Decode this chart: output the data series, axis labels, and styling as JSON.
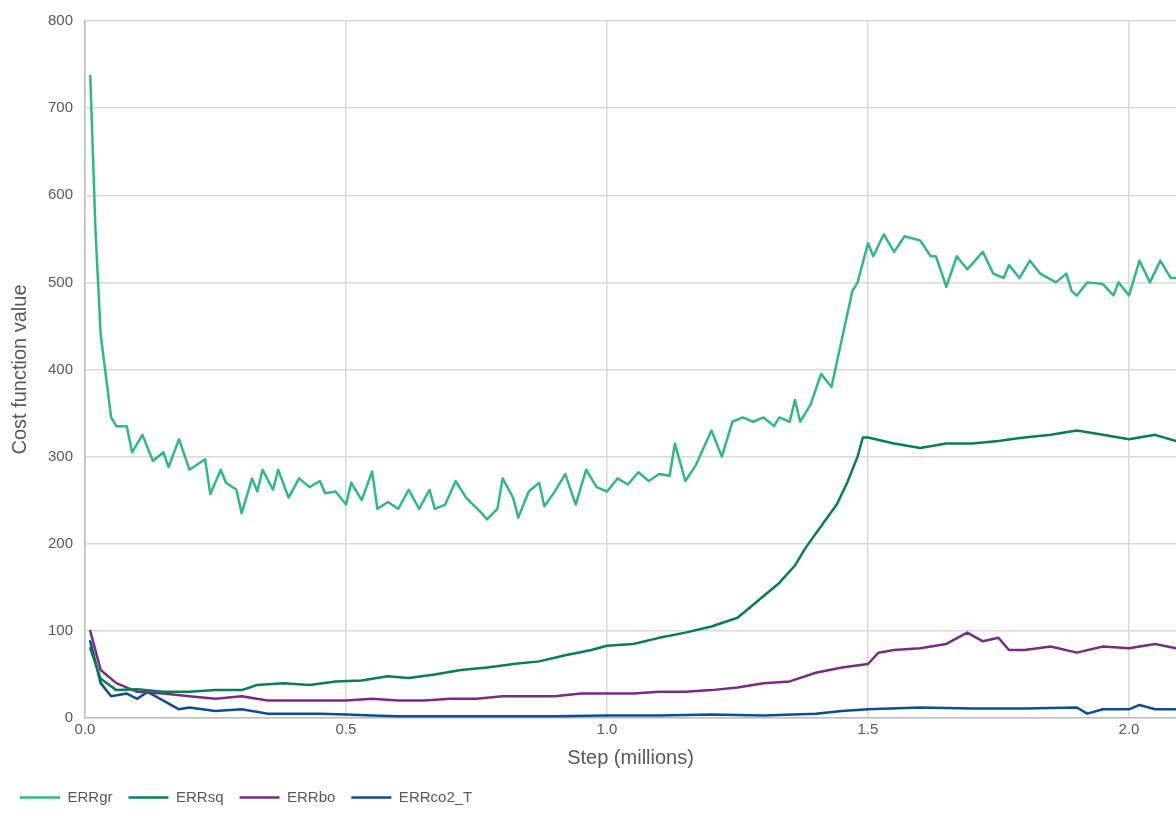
{
  "chart_data": {
    "type": "line",
    "xlabel": "Step (millions)",
    "ylabel": "Cost function value",
    "xlim": [
      0,
      2.09
    ],
    "xticks": [
      {
        "value": 0,
        "label": "0.0"
      },
      {
        "value": 0.5,
        "label": "0.5"
      },
      {
        "value": 1,
        "label": "1.0"
      },
      {
        "value": 1.5,
        "label": "1.5"
      },
      {
        "value": 2,
        "label": "2.0"
      }
    ],
    "ylim": [
      0,
      800
    ],
    "yticks": [
      0,
      100,
      200,
      300,
      400,
      500,
      600,
      700,
      800
    ],
    "grid": true,
    "legend": "bottom left",
    "marker": "none",
    "line_style": "solid",
    "series": [
      {
        "name": "ERRgr",
        "color": "#33b883",
        "x": [
          0.01,
          0.02,
          0.03,
          0.05,
          0.06,
          0.08,
          0.09,
          0.11,
          0.13,
          0.15,
          0.16,
          0.18,
          0.2,
          0.23,
          0.24,
          0.26,
          0.27,
          0.29,
          0.3,
          0.32,
          0.33,
          0.34,
          0.36,
          0.37,
          0.39,
          0.41,
          0.43,
          0.45,
          0.46,
          0.48,
          0.5,
          0.51,
          0.53,
          0.55,
          0.56,
          0.58,
          0.6,
          0.62,
          0.64,
          0.66,
          0.67,
          0.69,
          0.71,
          0.73,
          0.76,
          0.77,
          0.79,
          0.8,
          0.82,
          0.83,
          0.85,
          0.87,
          0.88,
          0.9,
          0.92,
          0.94,
          0.96,
          0.98,
          1.0,
          1.02,
          1.04,
          1.06,
          1.08,
          1.1,
          1.12,
          1.13,
          1.15,
          1.17,
          1.2,
          1.22,
          1.24,
          1.26,
          1.28,
          1.3,
          1.32,
          1.33,
          1.35,
          1.36,
          1.37,
          1.39,
          1.41,
          1.43,
          1.45,
          1.47,
          1.48,
          1.5,
          1.51,
          1.53,
          1.55,
          1.57,
          1.6,
          1.62,
          1.63,
          1.65,
          1.67,
          1.69,
          1.72,
          1.74,
          1.76,
          1.77,
          1.79,
          1.81,
          1.83,
          1.86,
          1.88,
          1.89,
          1.9,
          1.92,
          1.95,
          1.97,
          1.98,
          2.0,
          2.02,
          2.04,
          2.06,
          2.08,
          2.09
        ],
        "values": [
          737,
          560,
          440,
          345,
          335,
          335,
          305,
          325,
          295,
          305,
          288,
          320,
          285,
          297,
          257,
          285,
          270,
          262,
          235,
          275,
          260,
          285,
          262,
          285,
          253,
          275,
          265,
          272,
          258,
          260,
          245,
          270,
          250,
          283,
          240,
          248,
          240,
          262,
          240,
          262,
          240,
          245,
          272,
          253,
          235,
          228,
          240,
          275,
          253,
          230,
          260,
          270,
          243,
          260,
          280,
          245,
          285,
          265,
          260,
          275,
          268,
          282,
          272,
          280,
          278,
          315,
          272,
          290,
          330,
          300,
          340,
          345,
          340,
          345,
          335,
          345,
          340,
          365,
          340,
          360,
          395,
          380,
          435,
          490,
          500,
          545,
          530,
          555,
          535,
          553,
          548,
          530,
          530,
          495,
          530,
          515,
          535,
          510,
          505,
          520,
          505,
          525,
          510,
          500,
          510,
          490,
          485,
          500,
          498,
          485,
          500,
          485,
          525,
          500,
          525,
          505,
          505
        ]
      },
      {
        "name": "ERRsq",
        "color": "#0a7e52",
        "x": [
          0.01,
          0.03,
          0.06,
          0.1,
          0.15,
          0.2,
          0.25,
          0.3,
          0.33,
          0.38,
          0.43,
          0.48,
          0.53,
          0.58,
          0.62,
          0.67,
          0.72,
          0.77,
          0.82,
          0.87,
          0.92,
          0.97,
          1.0,
          1.05,
          1.1,
          1.15,
          1.2,
          1.25,
          1.28,
          1.3,
          1.33,
          1.36,
          1.38,
          1.41,
          1.44,
          1.46,
          1.48,
          1.49,
          1.5,
          1.55,
          1.6,
          1.65,
          1.7,
          1.75,
          1.8,
          1.85,
          1.9,
          1.95,
          2.0,
          2.05,
          2.09
        ],
        "values": [
          80,
          45,
          32,
          33,
          30,
          30,
          32,
          32,
          38,
          40,
          38,
          42,
          43,
          48,
          46,
          50,
          55,
          58,
          62,
          65,
          72,
          78,
          83,
          85,
          92,
          98,
          105,
          115,
          130,
          140,
          155,
          175,
          195,
          220,
          245,
          270,
          300,
          322,
          322,
          315,
          310,
          315,
          315,
          318,
          322,
          325,
          330,
          325,
          320,
          325,
          318
        ]
      },
      {
        "name": "ERRbo",
        "color": "#7a2b85",
        "x": [
          0.01,
          0.03,
          0.06,
          0.1,
          0.15,
          0.2,
          0.25,
          0.3,
          0.35,
          0.4,
          0.45,
          0.5,
          0.55,
          0.6,
          0.65,
          0.7,
          0.75,
          0.8,
          0.85,
          0.9,
          0.95,
          1.0,
          1.05,
          1.1,
          1.15,
          1.2,
          1.25,
          1.3,
          1.35,
          1.4,
          1.45,
          1.5,
          1.52,
          1.55,
          1.6,
          1.65,
          1.69,
          1.72,
          1.75,
          1.77,
          1.8,
          1.85,
          1.9,
          1.95,
          2.0,
          2.05,
          2.09
        ],
        "values": [
          100,
          55,
          40,
          30,
          28,
          25,
          22,
          25,
          20,
          20,
          20,
          20,
          22,
          20,
          20,
          22,
          22,
          25,
          25,
          25,
          28,
          28,
          28,
          30,
          30,
          32,
          35,
          40,
          42,
          52,
          58,
          62,
          75,
          78,
          80,
          85,
          98,
          88,
          92,
          78,
          78,
          82,
          75,
          82,
          80,
          85,
          80
        ]
      },
      {
        "name": "ERRco2_T",
        "color": "#0f4e8c",
        "x": [
          0.01,
          0.03,
          0.05,
          0.08,
          0.1,
          0.12,
          0.15,
          0.18,
          0.2,
          0.25,
          0.3,
          0.35,
          0.4,
          0.45,
          0.5,
          0.55,
          0.6,
          0.7,
          0.8,
          0.9,
          1.0,
          1.1,
          1.2,
          1.3,
          1.4,
          1.45,
          1.5,
          1.6,
          1.7,
          1.8,
          1.9,
          1.92,
          1.95,
          2.0,
          2.02,
          2.05,
          2.09
        ],
        "values": [
          88,
          40,
          25,
          28,
          22,
          30,
          20,
          10,
          12,
          8,
          10,
          5,
          5,
          5,
          4,
          3,
          2,
          2,
          2,
          2,
          3,
          3,
          4,
          3,
          5,
          8,
          10,
          12,
          11,
          11,
          12,
          5,
          10,
          10,
          15,
          10,
          10
        ]
      }
    ]
  }
}
